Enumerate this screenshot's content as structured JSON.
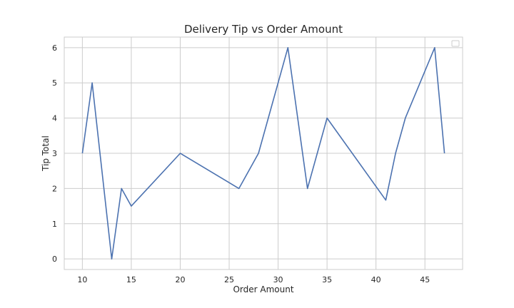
{
  "chart_data": {
    "type": "line",
    "title": "Delivery Tip vs Order Amount",
    "xlabel": "Order Amount",
    "ylabel": "Tip Total",
    "xlim": [
      8.15,
      48.85
    ],
    "ylim": [
      -0.3,
      6.3
    ],
    "xticks": [
      10,
      15,
      20,
      25,
      30,
      35,
      40,
      45
    ],
    "yticks": [
      0,
      1,
      2,
      3,
      4,
      5,
      6
    ],
    "grid": true,
    "legend": "top-right (empty)",
    "series": [
      {
        "color": "#4c72b0",
        "x": [
          10,
          11,
          13,
          14,
          15,
          20,
          26,
          28,
          31,
          33,
          35,
          41,
          42,
          43,
          46,
          47
        ],
        "y": [
          3,
          5,
          0,
          2,
          1.5,
          3,
          2,
          3,
          6,
          2,
          4,
          1.67,
          3,
          4,
          6,
          3
        ]
      }
    ]
  },
  "colors": {
    "line": "#4c72b0",
    "grid": "#cccccc",
    "frame": "#cccccc"
  }
}
